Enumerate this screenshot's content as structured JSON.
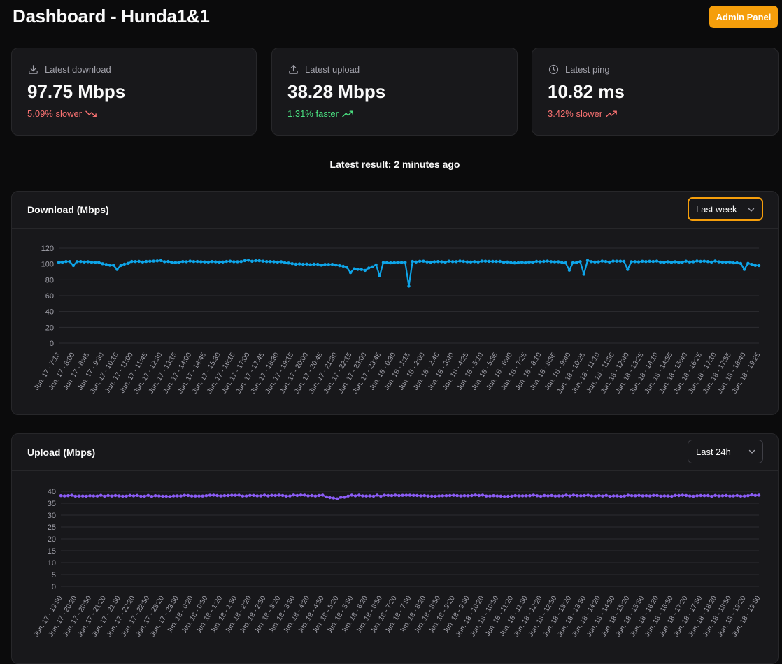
{
  "header": {
    "title": "Dashboard - Hunda1&1",
    "admin_label": "Admin Panel"
  },
  "stats": [
    {
      "label": "Latest download",
      "icon": "download-icon",
      "value": "97.75 Mbps",
      "trend": "5.09% slower",
      "trend_dir": "down",
      "trend_color": "#f87171"
    },
    {
      "label": "Latest upload",
      "icon": "upload-icon",
      "value": "38.28 Mbps",
      "trend": "1.31% faster",
      "trend_dir": "up",
      "trend_color": "#4ade80"
    },
    {
      "label": "Latest ping",
      "icon": "clock-icon",
      "value": "10.82 ms",
      "trend": "3.42% slower",
      "trend_dir": "up",
      "trend_color": "#f87171"
    }
  ],
  "latest_result": "Latest result: 2 minutes ago",
  "colors": {
    "accent": "#f59e0b",
    "download_line": "#0ea5e9",
    "upload_line": "#8b5cf6"
  },
  "chart_data": [
    {
      "type": "line",
      "title": "Download (Mbps)",
      "range_label": "Last week",
      "color": "#0ea5e9",
      "yticks": [
        0,
        20,
        40,
        60,
        80,
        100,
        120
      ],
      "ylim": [
        0,
        120
      ],
      "x": [
        "Jun. 17 - 7:13",
        "Jun. 17 - 8:00",
        "Jun. 17 - 8:45",
        "Jun. 17 - 9:30",
        "Jun. 17 - 10:15",
        "Jun. 17 - 11:00",
        "Jun. 17 - 11:45",
        "Jun. 17 - 12:30",
        "Jun. 17 - 13:15",
        "Jun. 17 - 14:00",
        "Jun. 17 - 14:45",
        "Jun. 17 - 15:30",
        "Jun. 17 - 16:15",
        "Jun. 17 - 17:00",
        "Jun. 17 - 17:45",
        "Jun. 17 - 18:30",
        "Jun. 17 - 19:15",
        "Jun. 17 - 20:00",
        "Jun. 17 - 20:45",
        "Jun. 17 - 21:30",
        "Jun. 17 - 22:15",
        "Jun. 17 - 23:00",
        "Jun. 17 - 23:45",
        "Jun. 18 - 0:30",
        "Jun. 18 - 1:15",
        "Jun. 18 - 2:00",
        "Jun. 18 - 2:45",
        "Jun. 18 - 3:40",
        "Jun. 18 - 4:25",
        "Jun. 18 - 5:10",
        "Jun. 18 - 5:55",
        "Jun. 18 - 6:40",
        "Jun. 18 - 7:25",
        "Jun. 18 - 8:10",
        "Jun. 18 - 8:55",
        "Jun. 18 - 9:40",
        "Jun. 18 - 10:25",
        "Jun. 18 - 11:10",
        "Jun. 18 - 11:55",
        "Jun. 18 - 12:40",
        "Jun. 18 - 13:25",
        "Jun. 18 - 14:10",
        "Jun. 18 - 14:55",
        "Jun. 18 - 15:40",
        "Jun. 18 - 16:25",
        "Jun. 18 - 17:10",
        "Jun. 18 - 17:55",
        "Jun. 18 - 18:40",
        "Jun. 18 - 19:25"
      ],
      "values": [
        102,
        103,
        103,
        101,
        97,
        103,
        103,
        104,
        102,
        103,
        103,
        103,
        103,
        104,
        104,
        103,
        100,
        100,
        99,
        99,
        95,
        92,
        101,
        102,
        103,
        103,
        103,
        103,
        103,
        103,
        103,
        102,
        102,
        103,
        103,
        101,
        104,
        103,
        103,
        103,
        103,
        103,
        102,
        103,
        103,
        103,
        102,
        101,
        98
      ],
      "dips": [
        {
          "at": "Jun. 17 - 8:00",
          "value": 98
        },
        {
          "at": "Jun. 17 - 10:15",
          "value": 93
        },
        {
          "at": "Jun. 17 - 22:15",
          "value": 89
        },
        {
          "at": "Jun. 17 - 23:45",
          "value": 85
        },
        {
          "at": "Jun. 18 - 1:15",
          "value": 72
        },
        {
          "at": "Jun. 18 - 9:40",
          "value": 92
        },
        {
          "at": "Jun. 18 - 10:25",
          "value": 87
        },
        {
          "at": "Jun. 18 - 12:40",
          "value": 93
        },
        {
          "at": "Jun. 18 - 18:40",
          "value": 93
        }
      ]
    },
    {
      "type": "line",
      "title": "Upload (Mbps)",
      "range_label": "Last 24h",
      "color": "#8b5cf6",
      "yticks": [
        0,
        5,
        10,
        15,
        20,
        25,
        30,
        35,
        40
      ],
      "ylim": [
        0,
        40
      ],
      "x": [
        "Jun. 17 - 19:50",
        "Jun. 17 - 20:20",
        "Jun. 17 - 20:50",
        "Jun. 17 - 21:20",
        "Jun. 17 - 21:50",
        "Jun. 17 - 22:20",
        "Jun. 17 - 22:50",
        "Jun. 17 - 23:20",
        "Jun. 17 - 23:50",
        "Jun. 18 - 0:20",
        "Jun. 18 - 0:50",
        "Jun. 18 - 1:20",
        "Jun. 18 - 1:50",
        "Jun. 18 - 2:20",
        "Jun. 18 - 2:50",
        "Jun. 18 - 3:20",
        "Jun. 18 - 3:50",
        "Jun. 18 - 4:20",
        "Jun. 18 - 4:50",
        "Jun. 18 - 5:20",
        "Jun. 18 - 5:50",
        "Jun. 18 - 6:20",
        "Jun. 18 - 6:50",
        "Jun. 18 - 7:20",
        "Jun. 18 - 7:50",
        "Jun. 18 - 8:20",
        "Jun. 18 - 8:50",
        "Jun. 18 - 9:20",
        "Jun. 18 - 9:50",
        "Jun. 18 - 10:20",
        "Jun. 18 - 10:50",
        "Jun. 18 - 11:20",
        "Jun. 18 - 11:50",
        "Jun. 18 - 12:20",
        "Jun. 18 - 12:50",
        "Jun. 18 - 13:20",
        "Jun. 18 - 13:50",
        "Jun. 18 - 14:20",
        "Jun. 18 - 14:50",
        "Jun. 18 - 15:20",
        "Jun. 18 - 15:50",
        "Jun. 18 - 16:20",
        "Jun. 18 - 16:50",
        "Jun. 18 - 17:20",
        "Jun. 18 - 17:50",
        "Jun. 18 - 18:20",
        "Jun. 18 - 18:50",
        "Jun. 18 - 19:20",
        "Jun. 18 - 19:50"
      ],
      "values": [
        38.2,
        38.1,
        38.2,
        38.2,
        38.2,
        38.1,
        38.2,
        37.8,
        38.2,
        38.0,
        38.2,
        38.2,
        38.2,
        38.2,
        38.2,
        38.2,
        38.2,
        38.2,
        38.2,
        36.9,
        38.2,
        38.2,
        38.2,
        38.2,
        38.2,
        38.2,
        38.2,
        38.2,
        38.2,
        38.2,
        38.1,
        37.9,
        38.2,
        38.2,
        38.2,
        38.2,
        38.2,
        38.2,
        38.0,
        38.2,
        38.2,
        38.2,
        38.1,
        38.2,
        38.2,
        38.1,
        38.2,
        38.2,
        38.4
      ]
    }
  ]
}
